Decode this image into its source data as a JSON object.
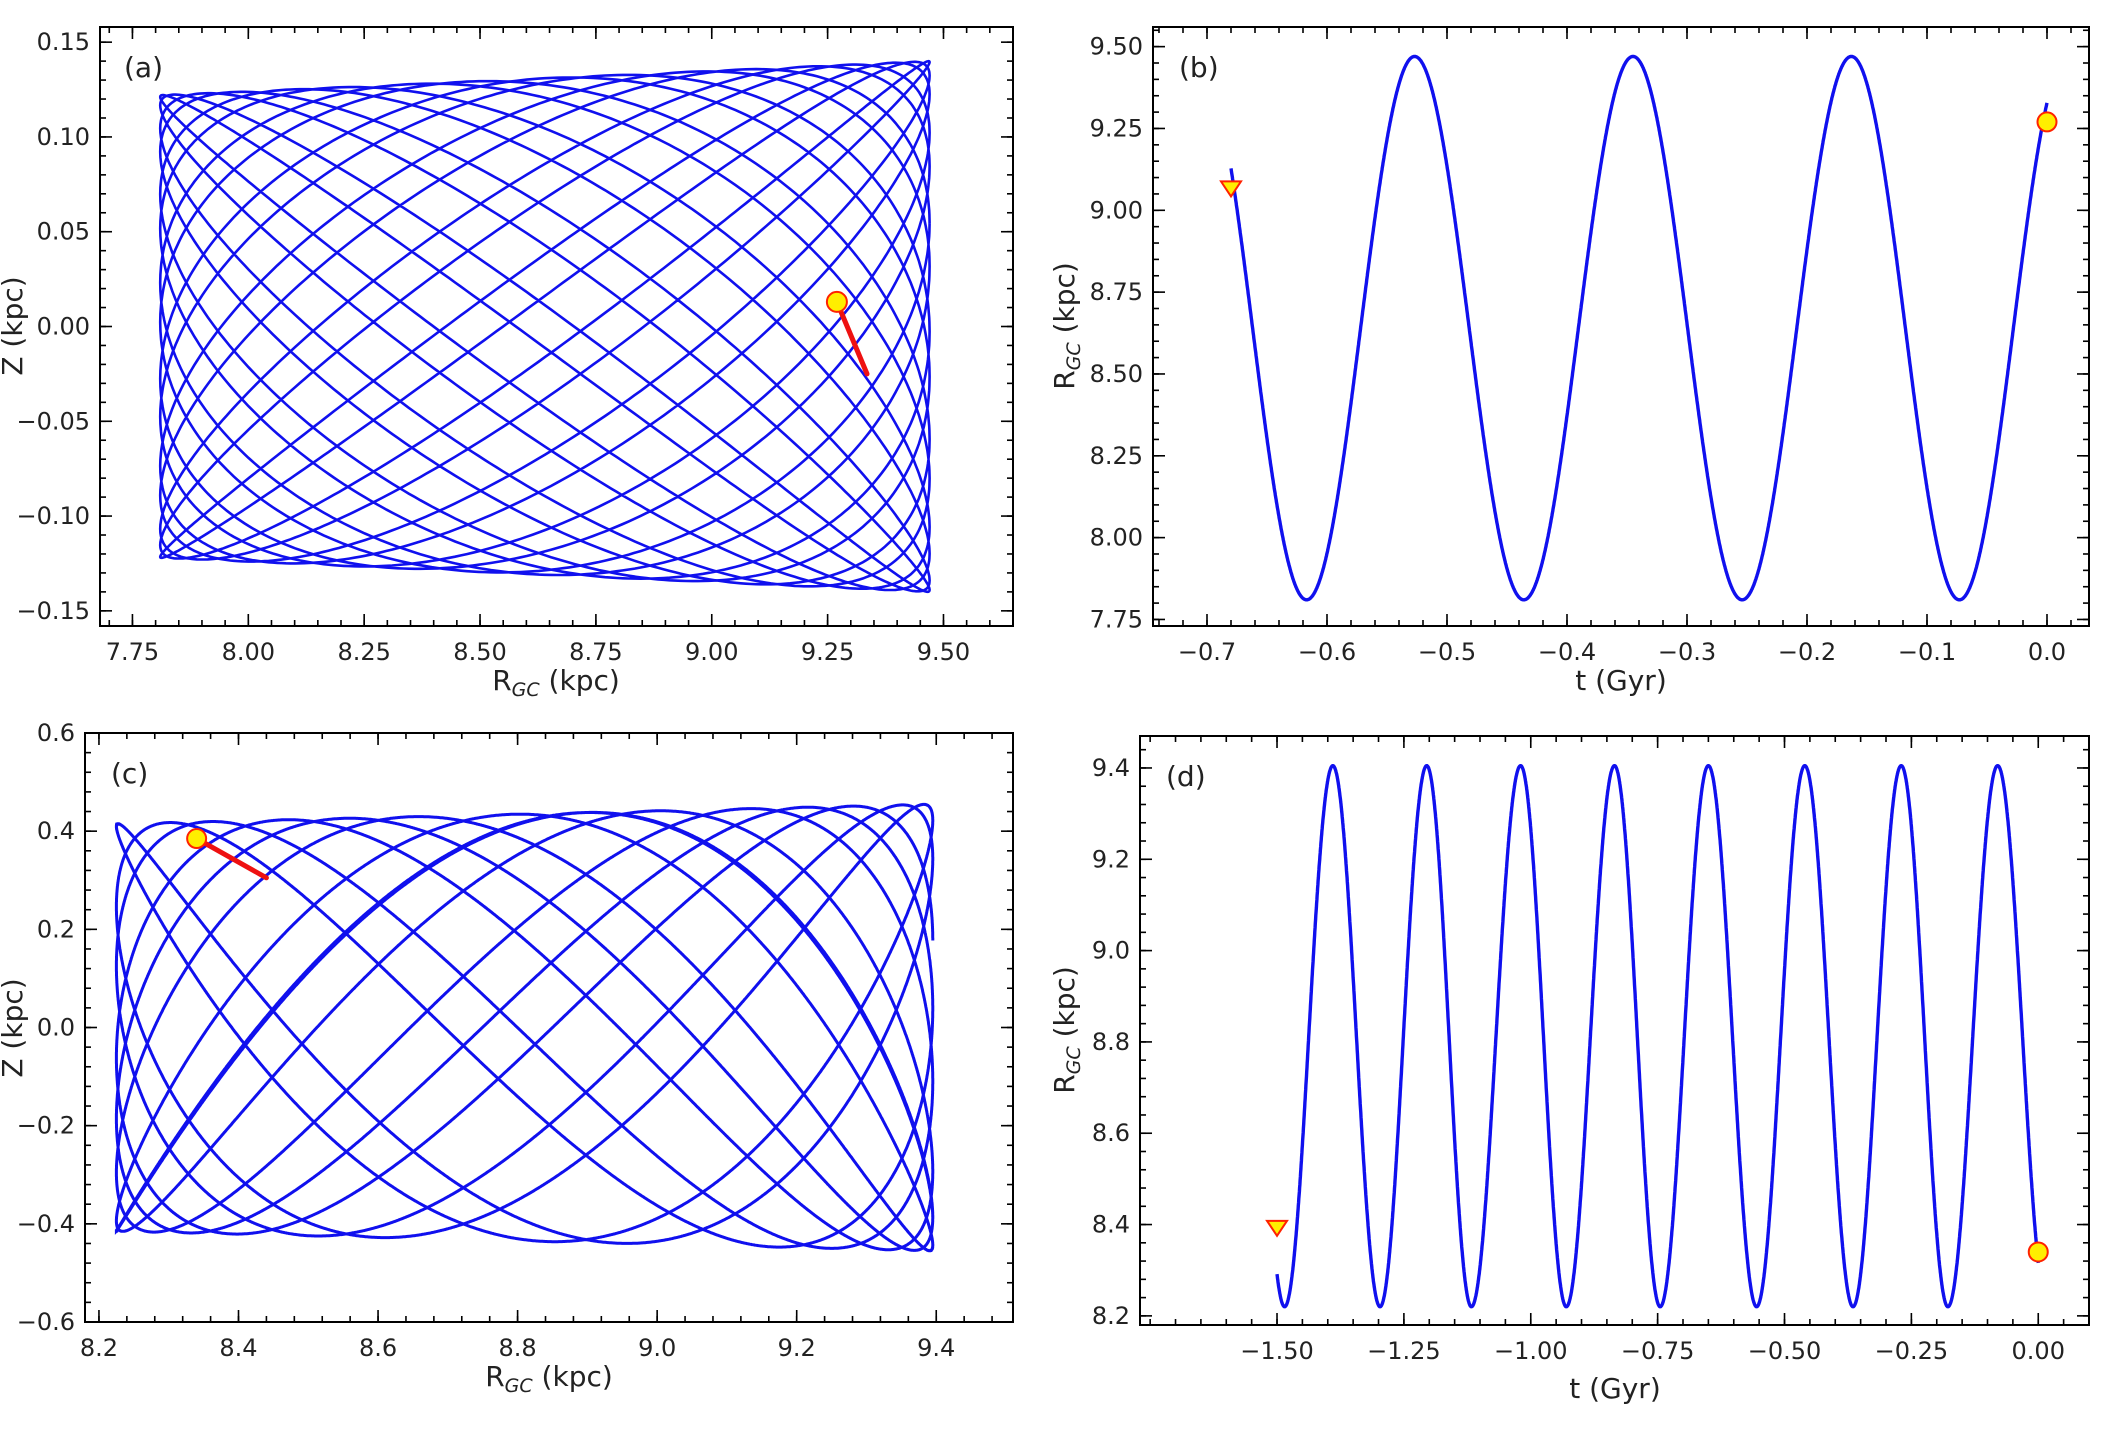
{
  "chart_data": [
    {
      "type": "line",
      "panel_label": "(a)",
      "xlabel": "R",
      "xlabel_sub": "GC",
      "xlabel_unit": " (kpc)",
      "ylabel": "Z (kpc)",
      "xlim": [
        7.68,
        9.65
      ],
      "ylim": [
        -0.158,
        0.158
      ],
      "xticks": [
        "7.75",
        "8.00",
        "8.25",
        "8.50",
        "8.75",
        "9.00",
        "9.25",
        "9.50"
      ],
      "yticks": [
        "−0.15",
        "−0.10",
        "−0.05",
        "0.00",
        "0.05",
        "0.10",
        "0.15"
      ],
      "orbit": {
        "r_min": 7.81,
        "r_max": 9.47,
        "z_amp_at_r_min": 0.122,
        "z_amp_at_r_max": 0.14,
        "radial_cycles": 60,
        "vertical_cycles": 68
      },
      "current_position": {
        "x": 9.27,
        "y": 0.013
      },
      "direction_arrow": {
        "x0": 9.27,
        "y0": 0.013,
        "x1": 9.335,
        "y1": -0.025
      },
      "colors": {
        "orbit": "#1010ee",
        "marker": "#ffee00",
        "marker_edge": "#ff2200",
        "arrow": "#ee1111"
      }
    },
    {
      "type": "line",
      "panel_label": "(b)",
      "xlabel": "t (Gyr)",
      "ylabel": "R",
      "ylabel_sub": "GC",
      "ylabel_unit": " (kpc)",
      "xlim": [
        -0.745,
        0.035
      ],
      "ylim": [
        7.73,
        9.56
      ],
      "xticks": [
        "−0.7",
        "−0.6",
        "−0.5",
        "−0.4",
        "−0.3",
        "−0.2",
        "−0.1",
        "0.0"
      ],
      "yticks": [
        "7.75",
        "8.00",
        "8.25",
        "8.50",
        "8.75",
        "9.00",
        "9.25",
        "9.50"
      ],
      "curve": {
        "t_start": -0.68,
        "t_end": 0.0,
        "r_min": 7.81,
        "r_max": 9.47,
        "minima_t": [
          -0.617,
          -0.436,
          -0.254,
          -0.073
        ],
        "maxima_t": [
          -0.527,
          -0.345,
          -0.163
        ]
      },
      "start_marker": {
        "x": -0.68,
        "y": 9.07,
        "shape": "triangle-down"
      },
      "end_marker": {
        "x": 0.0,
        "y": 9.27,
        "shape": "circle"
      },
      "colors": {
        "curve": "#1010ee",
        "marker": "#ffee00",
        "marker_edge": "#ff2200"
      }
    },
    {
      "type": "line",
      "panel_label": "(c)",
      "xlabel": "R",
      "xlabel_sub": "GC",
      "xlabel_unit": " (kpc)",
      "ylabel": "Z (kpc)",
      "xlim": [
        8.18,
        9.51
      ],
      "ylim": [
        -0.6,
        0.6
      ],
      "xticks": [
        "8.2",
        "8.4",
        "8.6",
        "8.8",
        "9.0",
        "9.2",
        "9.4"
      ],
      "yticks": [
        "−0.6",
        "−0.4",
        "−0.2",
        "0.0",
        "0.2",
        "0.4",
        "0.6"
      ],
      "orbit": {
        "r_min": 8.225,
        "r_max": 9.395,
        "z_amp_at_r_min": 0.415,
        "z_amp_at_r_max": 0.455,
        "radial_cycles": 8,
        "vertical_cycles": 14.6
      },
      "current_position": {
        "x": 8.34,
        "y": 0.385
      },
      "direction_arrow": {
        "x0": 8.34,
        "y0": 0.385,
        "x1": 8.44,
        "y1": 0.305
      },
      "colors": {
        "orbit": "#1010ee",
        "marker": "#ffee00",
        "marker_edge": "#ff2200",
        "arrow": "#ee1111"
      }
    },
    {
      "type": "line",
      "panel_label": "(d)",
      "xlabel": "t (Gyr)",
      "ylabel": "R",
      "ylabel_sub": "GC",
      "ylabel_unit": " (kpc)",
      "xlim": [
        -1.77,
        0.1
      ],
      "ylim": [
        8.18,
        9.47
      ],
      "xticks": [
        "−1.50",
        "−1.25",
        "−1.00",
        "−0.75",
        "−0.50",
        "−0.25",
        "0.00"
      ],
      "yticks": [
        "8.2",
        "8.4",
        "8.6",
        "8.8",
        "9.0",
        "9.2",
        "9.4"
      ],
      "curve": {
        "t_start": -1.5,
        "t_end": 0.0,
        "r_min": 8.22,
        "r_max": 9.405,
        "minima_t": [
          -1.485,
          -1.297,
          -1.117,
          -0.93,
          -0.745,
          -0.555,
          -0.365,
          -0.178
        ],
        "maxima_t": [
          -1.39,
          -1.205,
          -1.02,
          -0.835,
          -0.65,
          -0.46,
          -0.27,
          -0.08
        ]
      },
      "start_marker": {
        "x": -1.5,
        "y": 8.395,
        "shape": "triangle-down"
      },
      "end_marker": {
        "x": 0.0,
        "y": 8.34,
        "shape": "circle"
      },
      "colors": {
        "curve": "#1010ee",
        "marker": "#ffee00",
        "marker_edge": "#ff2200"
      }
    }
  ]
}
